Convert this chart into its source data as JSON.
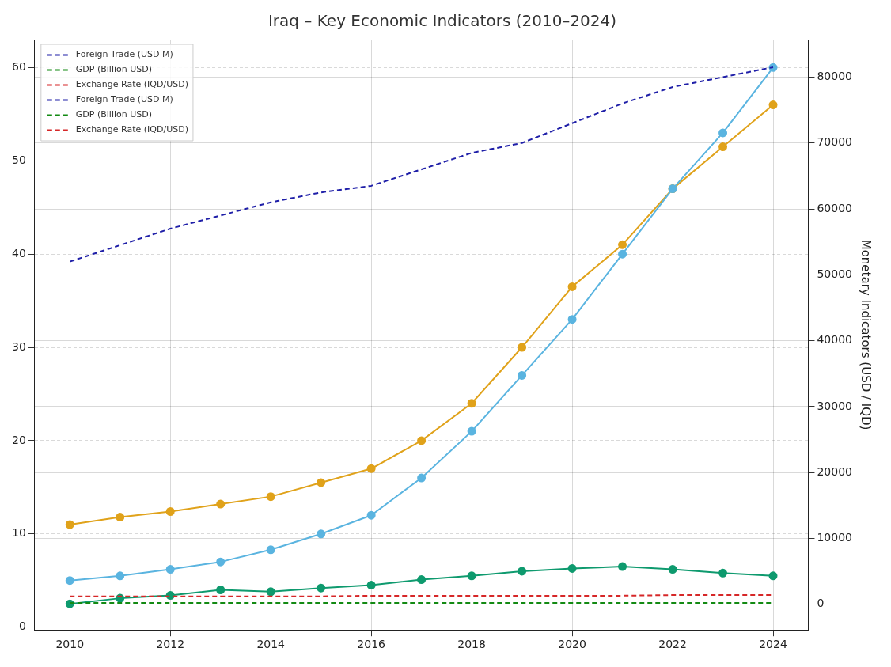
{
  "chart_data": {
    "type": "line",
    "title": "Iraq – Key Economic Indicators (2010–2024)",
    "y2label": "Monetary Indicators (USD / IQD)",
    "x": [
      2010,
      2011,
      2012,
      2013,
      2014,
      2015,
      2016,
      2017,
      2018,
      2019,
      2020,
      2021,
      2022,
      2023,
      2024
    ],
    "xlim": [
      2009.3,
      2024.7
    ],
    "xticks": [
      2010,
      2012,
      2014,
      2016,
      2018,
      2020,
      2022,
      2024
    ],
    "ylim": [
      -0.3,
      63
    ],
    "yticks": [
      0,
      10,
      20,
      30,
      40,
      50,
      60
    ],
    "y2lim": [
      -3900,
      85700
    ],
    "y2ticks": [
      0,
      10000,
      20000,
      30000,
      40000,
      50000,
      60000,
      70000,
      80000
    ],
    "grid": true,
    "legend": "top left",
    "series": [
      {
        "color": "#e0a21a",
        "marker": "circle",
        "line_style": "solid",
        "values": [
          11,
          11.8,
          12.4,
          13.2,
          14,
          15.5,
          17,
          20,
          24,
          30,
          36.5,
          41,
          47,
          51.5,
          56
        ]
      },
      {
        "color": "#5ab4e0",
        "marker": "circle",
        "line_style": "solid",
        "values": [
          5,
          5.5,
          6.2,
          7,
          8.3,
          10,
          12,
          16,
          21,
          27,
          33,
          40,
          47,
          53,
          60
        ]
      },
      {
        "color": "#0e9a6e",
        "marker": "circle",
        "line_style": "solid",
        "values": [
          2.5,
          3.1,
          3.4,
          4.0,
          3.8,
          4.2,
          4.5,
          5.1,
          5.5,
          6.0,
          6.3,
          6.5,
          6.2,
          5.8,
          5.5
        ]
      },
      {
        "name": "Foreign Trade (USD M)",
        "color": "#1f1fa8",
        "axis": "y2",
        "marker": "none",
        "line_style": "dashed",
        "values": [
          52000,
          54500,
          57000,
          59000,
          61000,
          62500,
          63500,
          66000,
          68500,
          70000,
          73000,
          76000,
          78500,
          80000,
          81500
        ]
      },
      {
        "name": "GDP (Billion USD)",
        "color": "#138a13",
        "axis": "y2",
        "marker": "none",
        "line_style": "dashed",
        "values": [
          200,
          200,
          200,
          200,
          200,
          200,
          200,
          200,
          200,
          200,
          200,
          200,
          200,
          200,
          200
        ]
      },
      {
        "name": "Exchange Rate (IQD/USD)",
        "color": "#d62728",
        "axis": "y2",
        "marker": "none",
        "line_style": "dashed",
        "values": [
          1200,
          1200,
          1200,
          1200,
          1200,
          1200,
          1300,
          1300,
          1300,
          1300,
          1300,
          1300,
          1400,
          1400,
          1400
        ]
      },
      {
        "name": "Foreign Trade (USD M)",
        "color": "#1f1fa8",
        "axis": "y2",
        "marker": "none",
        "line_style": "dashed",
        "values": [
          null,
          null,
          null,
          null,
          null,
          null,
          null,
          null,
          null,
          null,
          null,
          null,
          null,
          null,
          null
        ]
      },
      {
        "name": "GDP (Billion USD)",
        "color": "#138a13",
        "axis": "y2",
        "marker": "none",
        "line_style": "dashed",
        "values": [
          null,
          null,
          null,
          null,
          null,
          null,
          null,
          null,
          null,
          null,
          null,
          null,
          null,
          null,
          null
        ]
      },
      {
        "name": "Exchange Rate (IQD/USD)",
        "color": "#d62728",
        "axis": "y2",
        "marker": "none",
        "line_style": "dashed",
        "values": [
          null,
          null,
          null,
          null,
          null,
          null,
          null,
          null,
          null,
          null,
          null,
          null,
          null,
          null,
          null
        ]
      }
    ]
  }
}
